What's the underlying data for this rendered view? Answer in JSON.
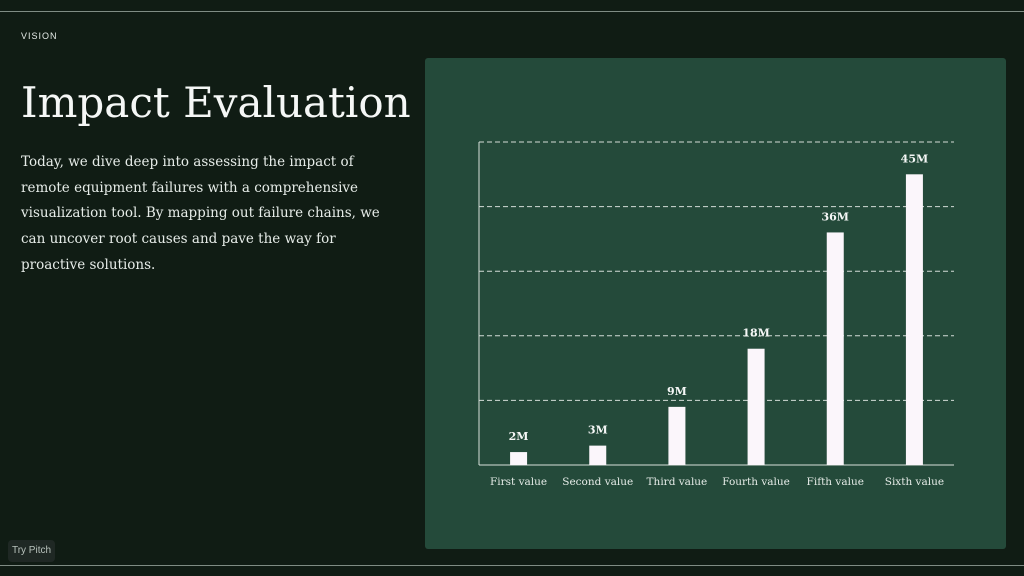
{
  "section_label": "VISION",
  "title": "Impact Evaluation",
  "body": "Today, we dive deep into assessing the impact of remote equipment failures with a comprehensive visualization tool. By mapping out failure chains, we can uncover root causes and pave the way for proactive solutions.",
  "badge": "Try Pitch",
  "colors": {
    "background": "#101c14",
    "panel": "#244a3a",
    "bar": "#fbf6fb",
    "text": "#f5f7f6"
  },
  "chart_data": {
    "type": "bar",
    "categories": [
      "First value",
      "Second value",
      "Third value",
      "Fourth value",
      "Fifth value",
      "Sixth value"
    ],
    "values": [
      2,
      3,
      9,
      18,
      36,
      45
    ],
    "data_labels": [
      "2M",
      "3M",
      "9M",
      "18M",
      "36M",
      "45M"
    ],
    "title": "",
    "xlabel": "",
    "ylabel": "",
    "ylim": [
      0,
      50
    ],
    "grid": "dashed horizontal",
    "legend": "none"
  }
}
